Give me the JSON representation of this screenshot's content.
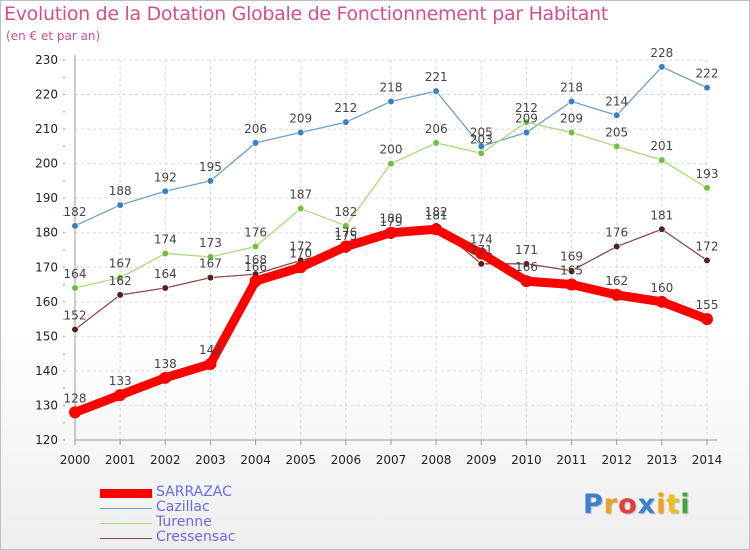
{
  "chart_data": {
    "type": "line",
    "title": "Evolution de la Dotation Globale de Fonctionnement par Habitant",
    "subtitle": "(en € et par an)",
    "xlabel": "",
    "ylabel": "",
    "x": [
      "2000",
      "2001",
      "2002",
      "2003",
      "2004",
      "2005",
      "2006",
      "2007",
      "2008",
      "2009",
      "2010",
      "2011",
      "2012",
      "2013",
      "2014"
    ],
    "ylim": [
      120,
      230
    ],
    "yticks": [
      "120",
      "130",
      "140",
      "150",
      "160",
      "170",
      "180",
      "190",
      "200",
      "210",
      "220",
      "230"
    ],
    "grid": true,
    "legend_position": "bottom-left",
    "series": [
      {
        "name": "Cazillac",
        "color": "#6fa0c8",
        "marker": "#3a7fc2",
        "values": [
          182,
          188,
          192,
          195,
          206,
          209,
          212,
          218,
          221,
          205,
          209,
          218,
          214,
          228,
          222
        ]
      },
      {
        "name": "Turenne",
        "color": "#a8dc78",
        "marker": "#6fc040",
        "values": [
          164,
          167,
          174,
          173,
          176,
          187,
          182,
          200,
          206,
          203,
          212,
          209,
          205,
          201,
          193
        ]
      },
      {
        "name": "Cressensac",
        "color": "#8a4a4a",
        "marker": "#5a1e1e",
        "values": [
          152,
          162,
          164,
          167,
          168,
          172,
          175,
          179,
          182,
          171,
          171,
          169,
          176,
          181,
          172
        ]
      },
      {
        "name": "SARRAZAC",
        "color": "#ff0000",
        "marker": "#ff0000",
        "values": [
          128,
          133,
          138,
          142,
          166,
          170,
          176,
          180,
          181,
          174,
          166,
          165,
          162,
          160,
          155
        ]
      }
    ],
    "data_labels": [
      {
        "series": "Cazillac",
        "labels": [
          "182",
          "188",
          "192",
          "195",
          "206",
          "209",
          "212",
          "218",
          "221",
          "205",
          "209",
          "218",
          "214",
          "228",
          "222"
        ]
      },
      {
        "series": "Turenne",
        "labels": [
          "164",
          "167",
          "174",
          "173",
          "176",
          "187",
          "182",
          "200",
          "206",
          "203",
          "212",
          "209",
          "205",
          "201",
          "193"
        ]
      },
      {
        "series": "Cressensac",
        "labels": [
          "152",
          "162",
          "164",
          "167",
          "168",
          "172",
          "175",
          "179",
          "182",
          "171",
          "171",
          "169",
          "176",
          "181",
          "172"
        ]
      },
      {
        "series": "SARRAZAC",
        "labels": [
          "128",
          "133",
          "138",
          "142",
          "166",
          "170",
          "176",
          "180",
          "181",
          "174",
          "166",
          "165",
          "162",
          "160",
          "155"
        ]
      }
    ]
  },
  "legend": {
    "items": [
      {
        "label": "SARRAZAC",
        "color": "#ff0000"
      },
      {
        "label": "Cazillac",
        "color": "#6fa0c8"
      },
      {
        "label": "Turenne",
        "color": "#a8dc78"
      },
      {
        "label": "Cressensac",
        "color": "#8a4a4a"
      }
    ]
  },
  "logo": {
    "letters": [
      "P",
      "r",
      "o",
      "x",
      "i",
      "t",
      "i"
    ],
    "colors": [
      "#3a7fd0",
      "#f0a020",
      "#e83a3a",
      "#3a7fd0",
      "#f0a020",
      "#e8c020",
      "#3aa83a"
    ]
  }
}
